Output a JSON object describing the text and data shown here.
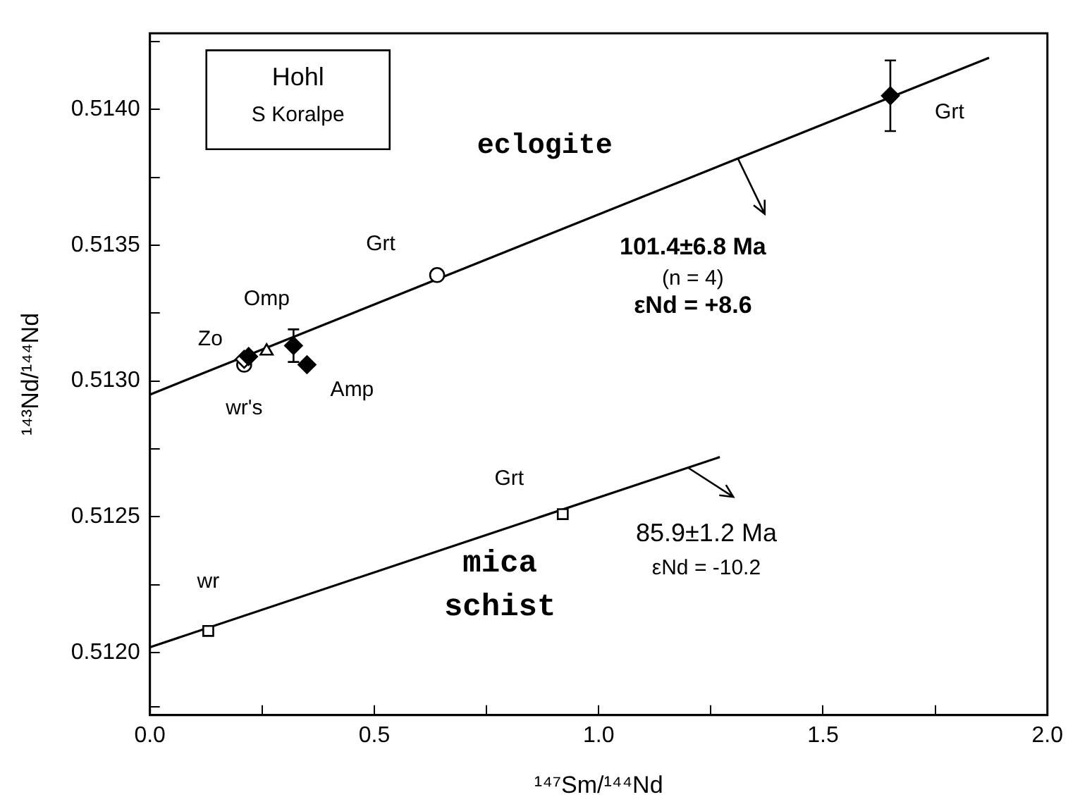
{
  "chart_data": {
    "type": "scatter",
    "xlabel": "¹⁴⁷Sm/¹⁴⁴Nd",
    "ylabel": "¹⁴³Nd/¹⁴⁴Nd",
    "xlim": [
      0,
      2
    ],
    "xticks": [
      {
        "value": 0,
        "label": "0.0"
      },
      {
        "value": 0.25,
        "label": null
      },
      {
        "value": 0.5,
        "label": "0.5"
      },
      {
        "value": 0.75,
        "label": null
      },
      {
        "value": 1,
        "label": "1.0"
      },
      {
        "value": 1.25,
        "label": null
      },
      {
        "value": 1.5,
        "label": "1.5"
      },
      {
        "value": 1.75,
        "label": null
      },
      {
        "value": 2,
        "label": "2.0"
      }
    ],
    "ylim": [
      0.51177,
      0.51428
    ],
    "yticks": [
      {
        "value": 0.5118,
        "label": null
      },
      {
        "value": 0.512,
        "label": "0.5120"
      },
      {
        "value": 0.51225,
        "label": null
      },
      {
        "value": 0.5125,
        "label": "0.5125"
      },
      {
        "value": 0.51275,
        "label": null
      },
      {
        "value": 0.513,
        "label": "0.5130"
      },
      {
        "value": 0.51325,
        "label": null
      },
      {
        "value": 0.5135,
        "label": "0.5135"
      },
      {
        "value": 0.51375,
        "label": null
      },
      {
        "value": 0.514,
        "label": "0.5140"
      },
      {
        "value": 0.51425,
        "label": null
      }
    ],
    "grid": false,
    "legend": false,
    "series": [
      {
        "type": "line",
        "marker": "none",
        "line_style": "solid",
        "color": "#000000",
        "x": [
          0,
          1.87
        ],
        "values": [
          0.51295,
          0.51419
        ]
      },
      {
        "type": "line",
        "marker": "none",
        "line_style": "solid",
        "color": "#000000",
        "x": [
          0,
          1.27
        ],
        "values": [
          0.51202,
          0.51272
        ]
      },
      {
        "marker": "diamond",
        "color": "#000000",
        "x": [
          1.65
        ],
        "values": [
          0.51405
        ],
        "errors": [
          0.00013
        ]
      },
      {
        "marker": "diamond",
        "color": "#000000",
        "x": [
          0.22,
          0.32,
          0.35
        ],
        "values": [
          0.51309,
          0.51313,
          0.51306
        ],
        "errors": [
          null,
          6e-05,
          null
        ]
      },
      {
        "marker": "diamond",
        "color": "#ffffff",
        "x": [
          0.21
        ],
        "values": [
          0.51308
        ]
      },
      {
        "marker": "triangle",
        "color": "#ffffff",
        "x": [
          0.26
        ],
        "values": [
          0.51311
        ]
      },
      {
        "marker": "circle",
        "color": "#ffffff",
        "x": [
          0.64,
          0.21
        ],
        "values": [
          0.51339,
          0.51306
        ]
      },
      {
        "marker": "square",
        "color": "#ffffff",
        "x": [
          0.13,
          0.92
        ],
        "values": [
          0.51208,
          0.51251
        ]
      }
    ],
    "annotations": [
      "Hohl",
      "S Koralpe",
      "eclogite",
      {
        "text": "101.4±6.8 Ma",
        "x": 1.31,
        "y": 0.51382
      },
      "(n = 4)",
      "εNd = +8.6",
      "mica schist",
      {
        "text": "85.9±1.2 Ma",
        "x": 1.2,
        "y": 0.51268
      },
      "εNd = -10.2",
      {
        "text": "Grt",
        "x": 1.65,
        "y": 0.51405
      },
      {
        "text": "Grt",
        "x": 0.64,
        "y": 0.51339
      },
      {
        "text": "Omp",
        "x": 0.32,
        "y": 0.51313
      },
      {
        "text": "Zo",
        "x": 0.21,
        "y": 0.51308
      },
      {
        "text": "wr's",
        "x": 0.21,
        "y": 0.51306
      },
      {
        "text": "Amp",
        "x": 0.35,
        "y": 0.51306
      },
      {
        "text": "Grt",
        "x": 0.92,
        "y": 0.51251
      },
      {
        "text": "wr",
        "x": 0.13,
        "y": 0.51208
      }
    ]
  }
}
